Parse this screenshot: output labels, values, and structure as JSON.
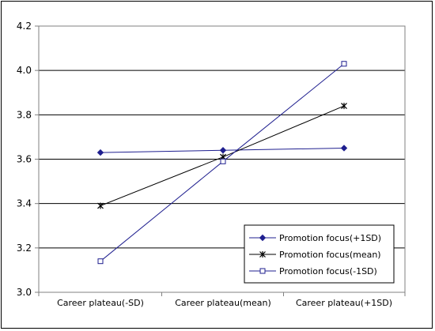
{
  "chart_data": {
    "type": "line",
    "categories": [
      "Career plateau(-SD)",
      "Career plateau(mean)",
      "Career plateau(+1SD)"
    ],
    "ylim": [
      3.0,
      4.2
    ],
    "yticks": [
      "3.0",
      "3.2",
      "3.4",
      "3.6",
      "3.8",
      "4.0",
      "4.2"
    ],
    "grid": true,
    "legend_position": "bottom-right",
    "series": [
      {
        "name": "Promotion focus(+1SD)",
        "values": [
          3.63,
          3.64,
          3.65
        ],
        "color": "#1f1f8f",
        "marker": "diamond"
      },
      {
        "name": "Promotion focus(mean)",
        "values": [
          3.39,
          3.61,
          3.84
        ],
        "color": "#000000",
        "marker": "star"
      },
      {
        "name": "Promotion focus(-1SD)",
        "values": [
          3.14,
          3.59,
          4.03
        ],
        "color": "#1f1f8f",
        "marker": "square"
      }
    ]
  }
}
